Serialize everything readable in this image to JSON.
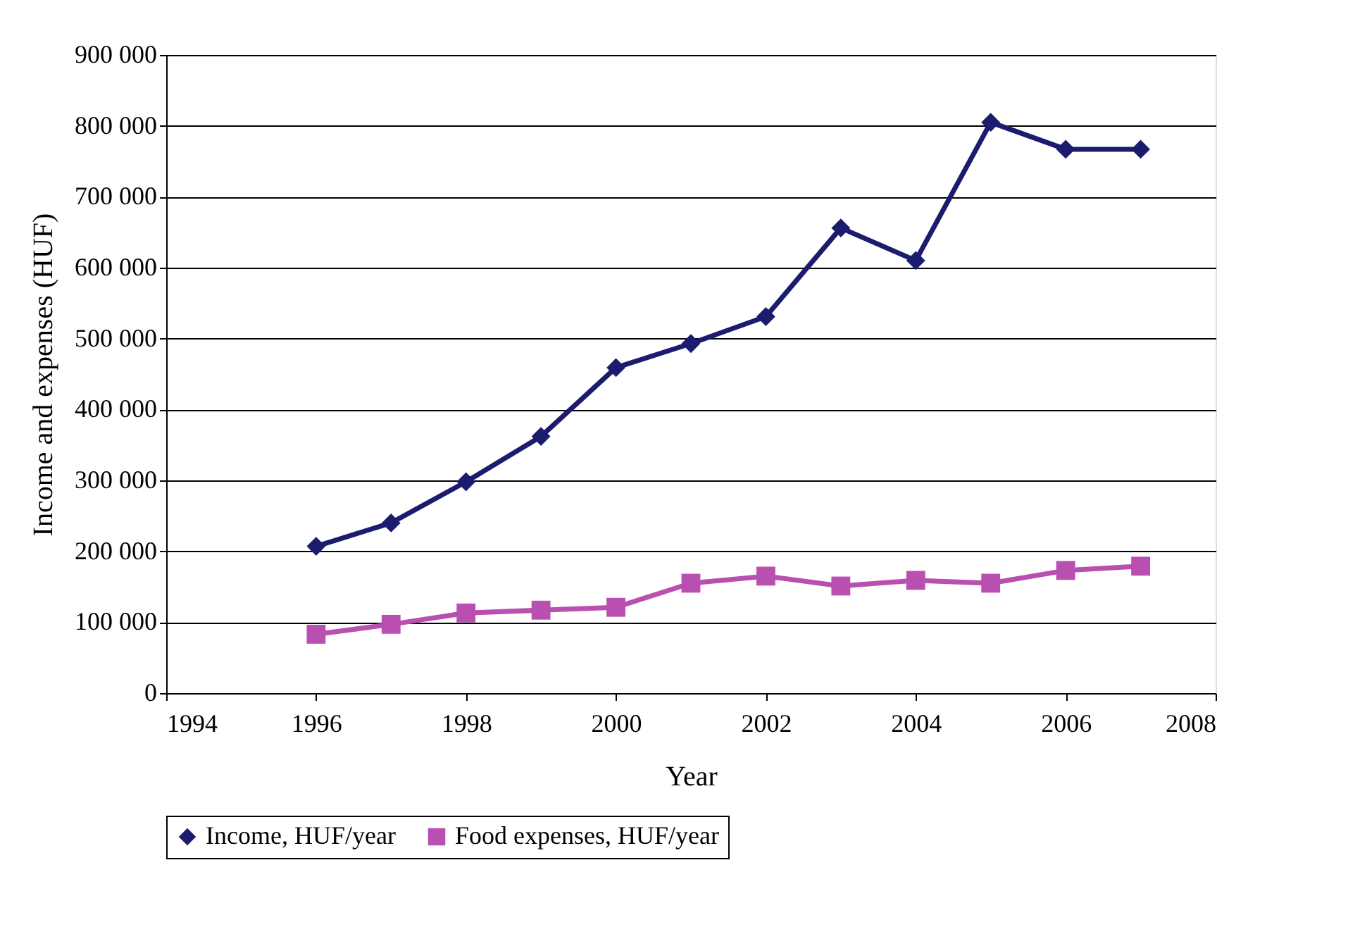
{
  "chart_data": {
    "type": "line",
    "xlabel": "Year",
    "ylabel": "Income and expenses (HUF)",
    "x": [
      1996,
      1997,
      1998,
      1999,
      2000,
      2001,
      2002,
      2003,
      2004,
      2005,
      2006,
      2007
    ],
    "series": [
      {
        "name": "Income, HUF/year",
        "color": "#1c1c6e",
        "marker": "diamond",
        "values": [
          207000,
          240000,
          298000,
          362000,
          459000,
          493000,
          531000,
          656000,
          610000,
          805000,
          767000,
          767000
        ]
      },
      {
        "name": "Food expenses, HUF/year",
        "color": "#b94fb0",
        "marker": "square",
        "values": [
          83000,
          97000,
          113000,
          117000,
          121000,
          155000,
          165000,
          151000,
          159000,
          155000,
          173000,
          179000
        ]
      }
    ],
    "xlim": [
      1994,
      2008
    ],
    "xticks": [
      1994,
      1996,
      1998,
      2000,
      2002,
      2004,
      2006,
      2008
    ],
    "ylim": [
      0,
      900000
    ],
    "yticks": [
      0,
      {
        "value": 100000,
        "label": "100 000"
      },
      {
        "value": 200000,
        "label": "200 000"
      },
      {
        "value": 300000,
        "label": "300 000"
      },
      {
        "value": 400000,
        "label": "400 000"
      },
      {
        "value": 500000,
        "label": "500 000"
      },
      {
        "value": 600000,
        "label": "600 000"
      },
      {
        "value": 700000,
        "label": "700 000"
      },
      {
        "value": 800000,
        "label": "800 000"
      },
      {
        "value": 900000,
        "label": "900 000"
      }
    ],
    "grid": "y",
    "legend": "bottom",
    "line_style": "solid"
  }
}
